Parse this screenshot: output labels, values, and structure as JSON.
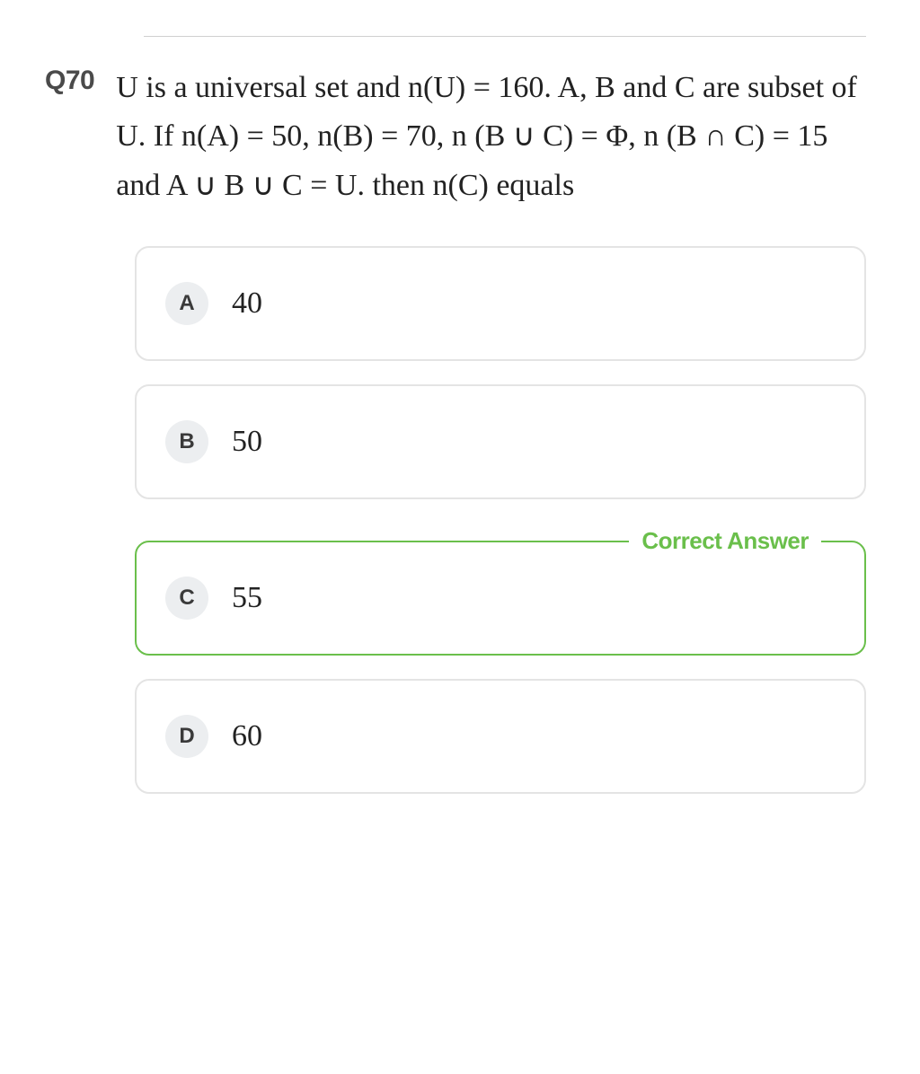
{
  "colors": {
    "text": "#1a1a1a",
    "qnum": "#4a4a4a",
    "option_border": "#e4e4e4",
    "correct_border": "#6abf4b",
    "correct_text": "#6abf4b",
    "letter_bg": "#eceef0",
    "letter_text": "#3a3a3a",
    "divider": "#d0d0d0",
    "background": "#ffffff"
  },
  "typography": {
    "qnum_fontsize": 30,
    "qtext_fontsize": 34,
    "option_text_fontsize": 34,
    "option_letter_fontsize": 24,
    "correct_label_fontsize": 26
  },
  "layout": {
    "option_radius": 16,
    "letter_radius": 24,
    "option_gap": 26
  },
  "question": {
    "number": "Q70",
    "text": "U is a universal set and n(U) = 160. A, B and C are subset of U. If n(A) = 50, n(B) = 70, n (B ∪ C) = Φ, n (B ∩ C) = 15 and A ∪ B ∪ C = U. then n(C) equals"
  },
  "options": [
    {
      "letter": "A",
      "text": "40",
      "correct": false
    },
    {
      "letter": "B",
      "text": "50",
      "correct": false
    },
    {
      "letter": "C",
      "text": "55",
      "correct": true
    },
    {
      "letter": "D",
      "text": "60",
      "correct": false
    }
  ],
  "correct_label": "Correct Answer"
}
